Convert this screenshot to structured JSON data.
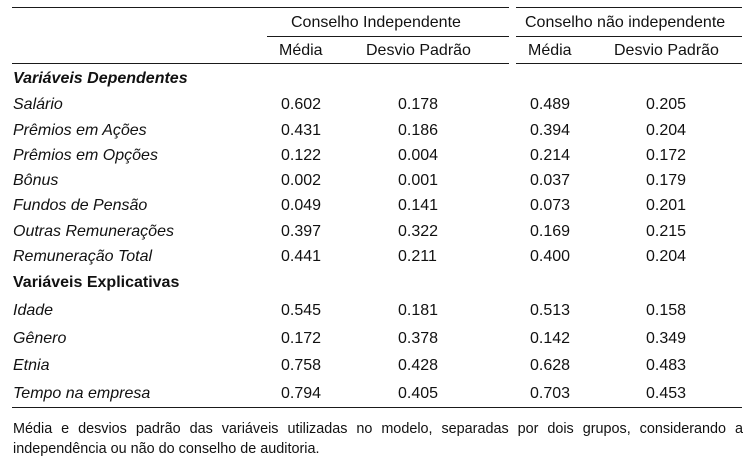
{
  "table": {
    "group_headers": [
      "Conselho Independente",
      "Conselho não independente"
    ],
    "column_headers": [
      "Média",
      "Desvio Padrão",
      "Média",
      "Desvio Padrão"
    ],
    "sections": [
      {
        "title": "Variáveis Dependentes",
        "rows": [
          {
            "label": "Salário",
            "values": [
              "0.602",
              "0.178",
              "0.489",
              "0.205"
            ]
          },
          {
            "label": "Prêmios em Ações",
            "values": [
              "0.431",
              "0.186",
              "0.394",
              "0.204"
            ]
          },
          {
            "label": "Prêmios em Opções",
            "values": [
              "0.122",
              "0.004",
              "0.214",
              "0.172"
            ]
          },
          {
            "label": "Bônus",
            "values": [
              "0.002",
              "0.001",
              "0.037",
              "0.179"
            ]
          },
          {
            "label": "Fundos de Pensão",
            "values": [
              "0.049",
              "0.141",
              "0.073",
              "0.201"
            ]
          },
          {
            "label": "Outras Remunerações",
            "values": [
              "0.397",
              "0.322",
              "0.169",
              "0.215"
            ]
          },
          {
            "label": "Remuneração Total",
            "values": [
              "0.441",
              "0.211",
              "0.400",
              "0.204"
            ]
          }
        ]
      },
      {
        "title": "Variáveis Explicativas",
        "rows": [
          {
            "label": "Idade",
            "values": [
              "0.545",
              "0.181",
              "0.513",
              "0.158"
            ]
          },
          {
            "label": "Gênero",
            "values": [
              "0.172",
              "0.378",
              "0.142",
              "0.349"
            ]
          },
          {
            "label": "Etnia",
            "values": [
              "0.758",
              "0.428",
              "0.628",
              "0.483"
            ]
          },
          {
            "label": "Tempo na empresa",
            "values": [
              "0.794",
              "0.405",
              "0.703",
              "0.453"
            ]
          }
        ]
      }
    ],
    "note": "Média e desvios padrão das variáveis utilizadas no modelo, separadas por dois grupos, considerando a independência ou não do conselho de auditoria."
  }
}
